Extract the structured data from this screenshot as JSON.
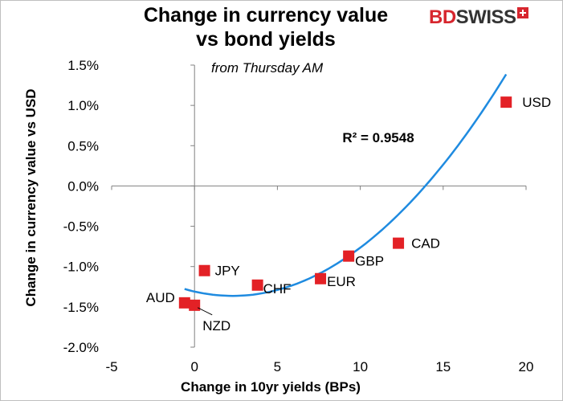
{
  "logo": {
    "part1": "BD",
    "part2": "SWISS"
  },
  "chart_data": {
    "type": "scatter",
    "title": [
      "Change in currency value",
      "vs bond yields"
    ],
    "subtitle": "from Thursday AM",
    "xlabel": "Change in 10yr yields (BPs)",
    "ylabel": "Change in currency value vs USD",
    "xlim": [
      -5,
      20
    ],
    "ylim": [
      -2.0,
      1.5
    ],
    "x_ticks": [
      -5,
      0,
      5,
      10,
      15,
      20
    ],
    "y_ticks": [
      1.5,
      1.0,
      0.5,
      0.0,
      -0.5,
      -1.0,
      -1.5,
      -2.0
    ],
    "y_tick_labels": [
      "1.5%",
      "1.0%",
      "0.5%",
      "0.0%",
      "-0.5%",
      "-1.0%",
      "-1.5%",
      "-2.0%"
    ],
    "grid": false,
    "points": [
      {
        "label": "USD",
        "x": 18.8,
        "y": 1.04
      },
      {
        "label": "CAD",
        "x": 12.3,
        "y": -0.71
      },
      {
        "label": "GBP",
        "x": 9.3,
        "y": -0.87
      },
      {
        "label": "EUR",
        "x": 7.6,
        "y": -1.15
      },
      {
        "label": "CHF",
        "x": 3.8,
        "y": -1.23
      },
      {
        "label": "JPY",
        "x": 0.6,
        "y": -1.05
      },
      {
        "label": "AUD",
        "x": -0.6,
        "y": -1.45
      },
      {
        "label": "NZD",
        "x": 0.0,
        "y": -1.48
      }
    ],
    "trendline": {
      "type": "polynomial",
      "coefficients": [
        -1.31,
        -0.0465,
        0.0101
      ],
      "x_range": [
        -0.6,
        18.8
      ],
      "r_squared_label": "R² = 0.9548"
    },
    "colors": {
      "marker": "#e32126",
      "trendline": "#1f8be0",
      "axis": "#808080"
    }
  }
}
